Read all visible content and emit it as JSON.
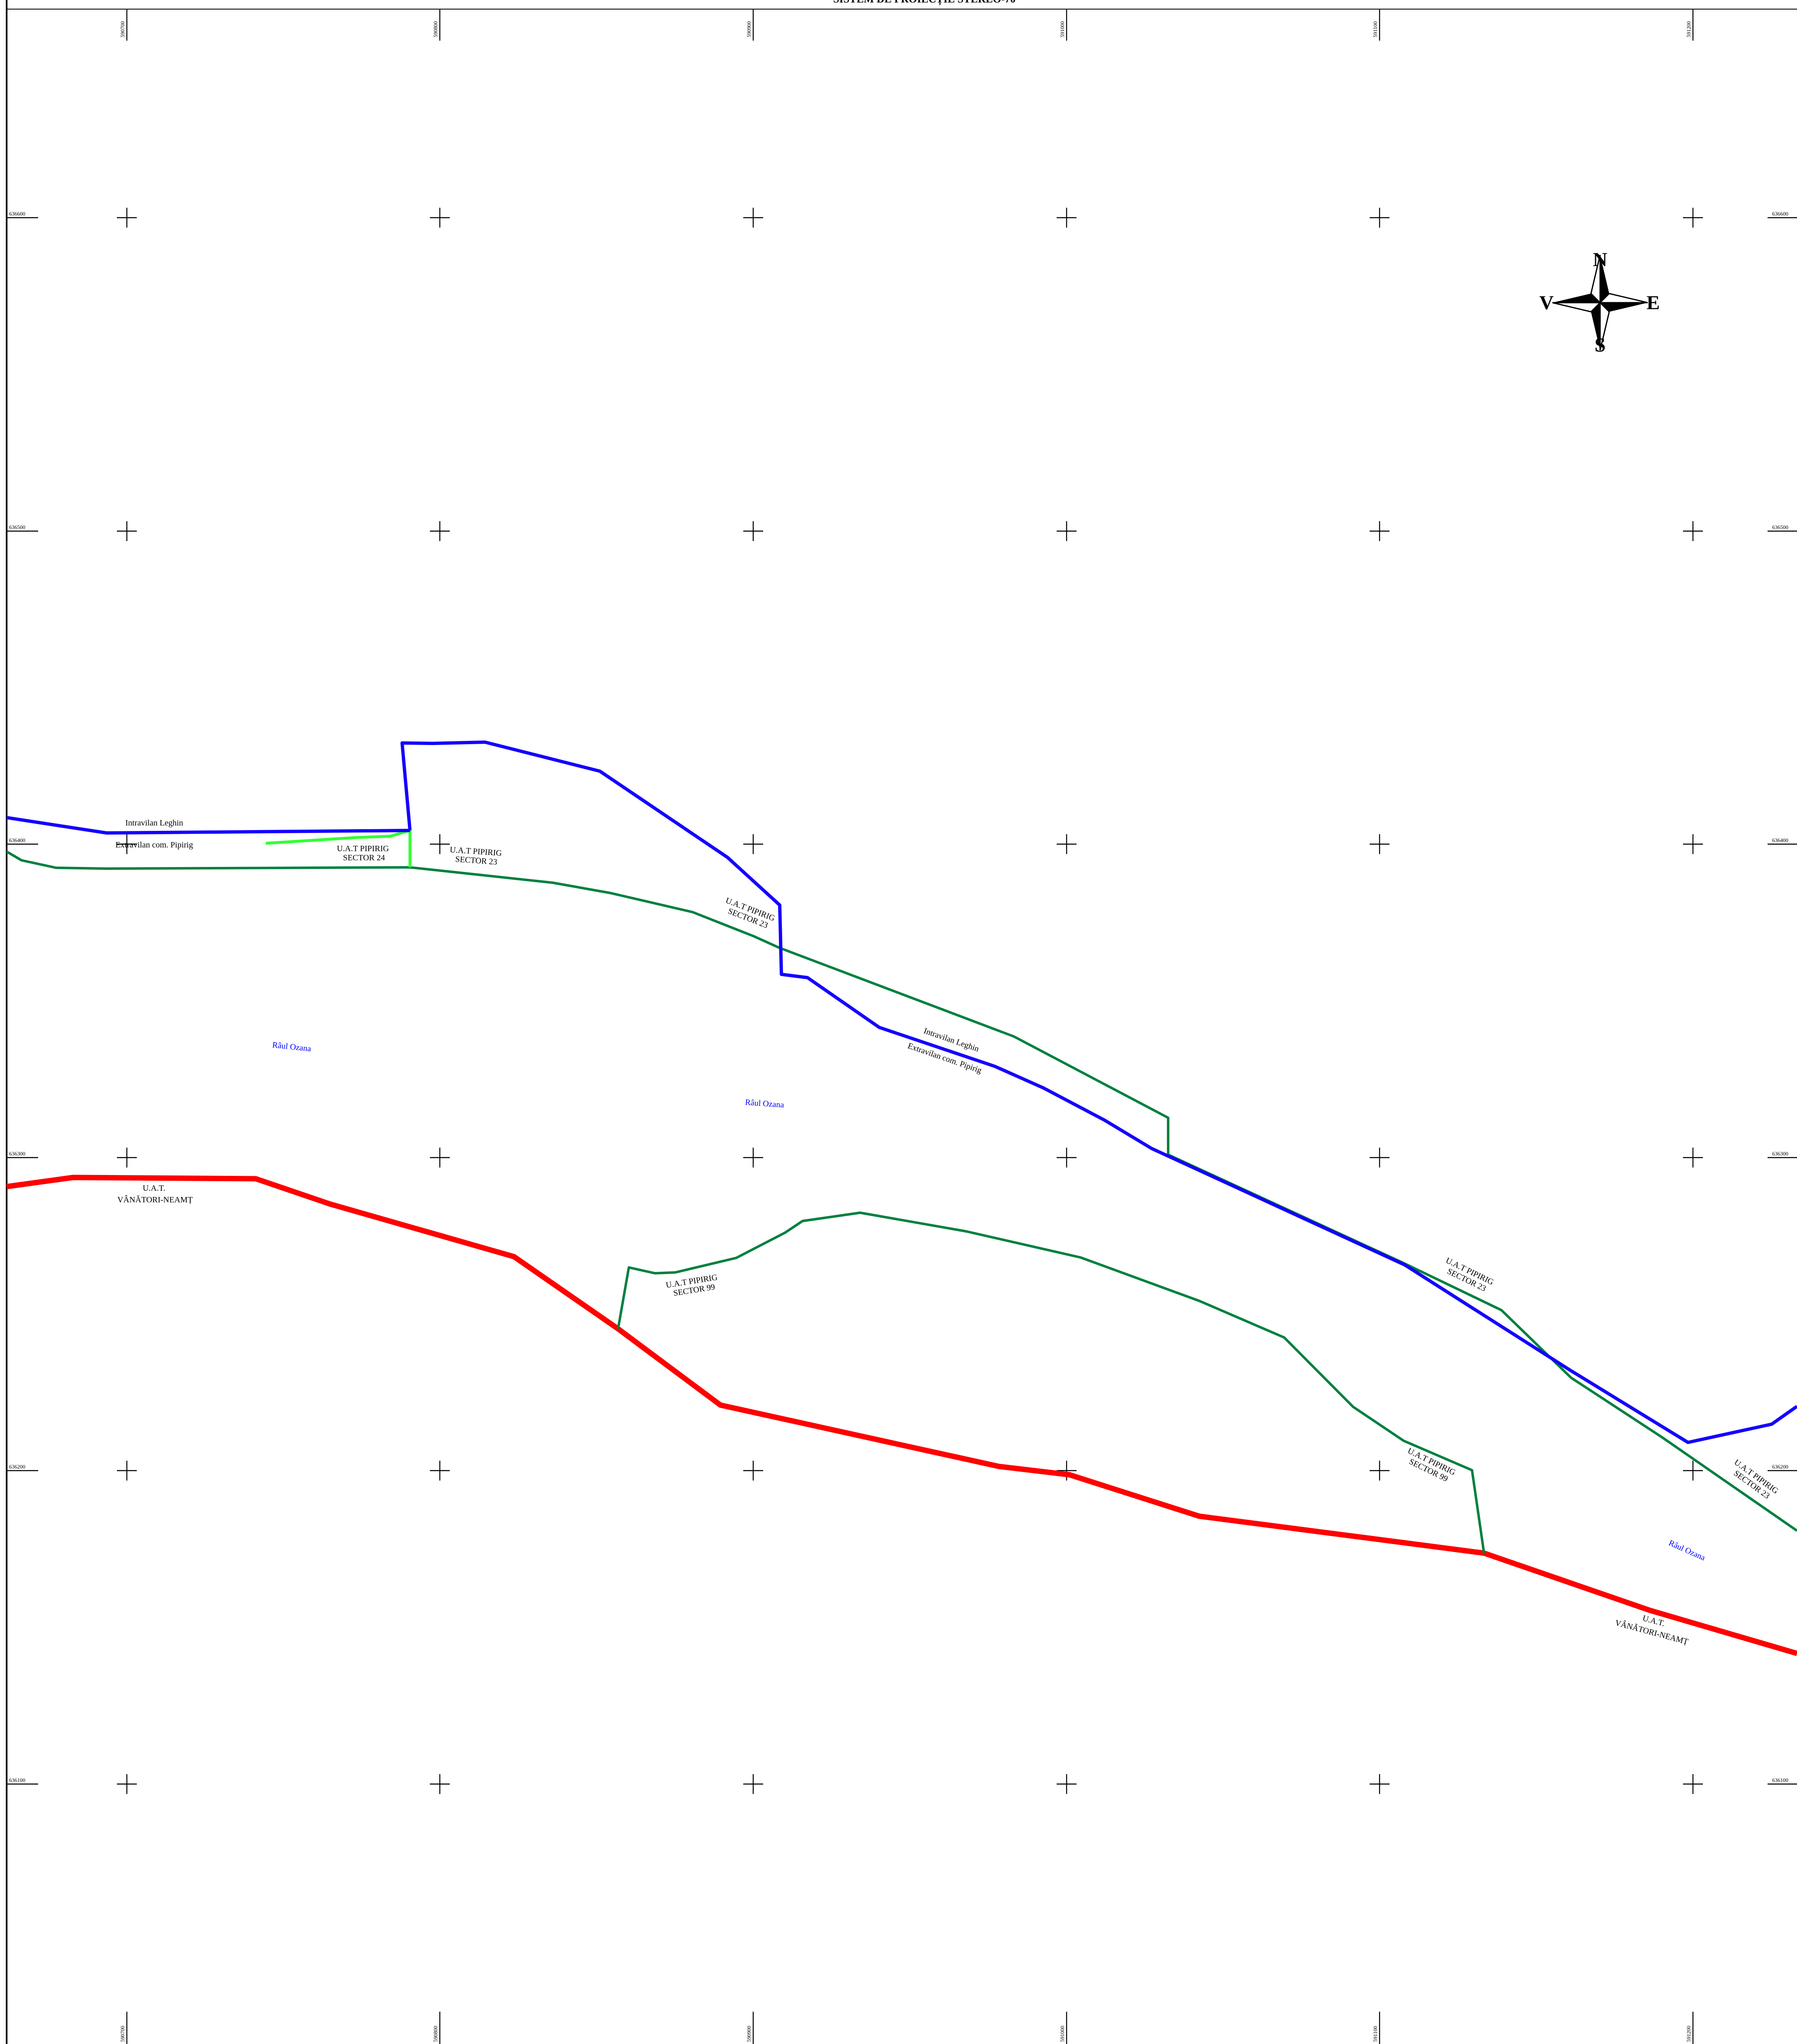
{
  "map": {
    "title": "SISTEM DE PROIECȚIE STEREO-70",
    "colors": {
      "intravilan": "#1400ff",
      "sector": "#008040",
      "sector_light": "#33ff33",
      "uat": "#ff0000",
      "river": "#0000ff",
      "ink": "#000000"
    },
    "x_coords": [
      "590700",
      "590800",
      "590900",
      "591000",
      "591100",
      "591200"
    ],
    "y_coords": [
      "636600",
      "636500",
      "636400",
      "636300",
      "636200",
      "636100"
    ],
    "compass": {
      "n": "N",
      "e": "E",
      "s": "S",
      "w": "V"
    },
    "labels": {
      "intravilan_1": "Intravilan Leghin",
      "extravilan_1": "Extravilan com. Pipirig",
      "sector24": [
        "U.A.T PIPIRIG",
        "SECTOR 24"
      ],
      "sector23_a": [
        "U.A.T PIPIRIG",
        "SECTOR 23"
      ],
      "sector23_b": [
        "U.A.T PIPIRIG",
        "SECTOR 23"
      ],
      "intravilan_2": "Intravilan Leghin",
      "extravilan_2": "Extravilan com. Pipirig",
      "river_1": "Râul Ozana",
      "river_2": "Râul Ozana",
      "river_3": "Râul Ozana",
      "uat_vn_1": [
        "U.A.T.",
        "VÂNĂTORI-NEAMȚ"
      ],
      "uat_vn_2": [
        "U.A.T.",
        "VÂNĂTORI-NEAMȚ"
      ],
      "sector99_a": [
        "U.A.T PIPIRIG",
        "SECTOR 99"
      ],
      "sector23_c": [
        "U.A.T PIPIRIG",
        "SECTOR 23"
      ],
      "sector99_b": [
        "U.A.T PIPIRIG",
        "SECTOR 99"
      ],
      "sector23_d": [
        "U.A.T PIPIRIG",
        "SECTOR 23"
      ]
    }
  }
}
